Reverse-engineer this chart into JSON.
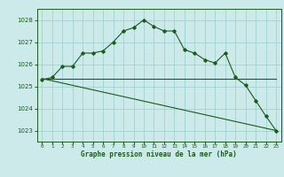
{
  "line1_x": [
    0,
    1,
    2,
    3,
    4,
    5,
    6,
    7,
    8,
    9,
    10,
    11,
    12,
    13,
    14,
    15,
    16,
    17,
    18,
    19,
    20,
    21,
    22,
    23
  ],
  "line1_y": [
    1025.3,
    1025.4,
    1025.9,
    1025.9,
    1026.5,
    1026.5,
    1026.6,
    1027.0,
    1027.5,
    1027.65,
    1028.0,
    1027.7,
    1027.5,
    1027.5,
    1026.65,
    1026.5,
    1026.2,
    1026.05,
    1026.5,
    1025.4,
    1025.05,
    1024.35,
    1023.65,
    1023.0
  ],
  "line2_x": [
    0,
    19,
    23
  ],
  "line2_y": [
    1025.35,
    1025.35,
    1025.35
  ],
  "line3_x": [
    0,
    23
  ],
  "line3_y": [
    1025.35,
    1023.0
  ],
  "color": "#1a5c1a",
  "bg_color": "#cceaea",
  "grid_color": "#99cccc",
  "xlabel": "Graphe pression niveau de la mer (hPa)",
  "xticks": [
    0,
    1,
    2,
    3,
    4,
    5,
    6,
    7,
    8,
    9,
    10,
    11,
    12,
    13,
    14,
    15,
    16,
    17,
    18,
    19,
    20,
    21,
    22,
    23
  ],
  "yticks": [
    1023,
    1024,
    1025,
    1026,
    1027,
    1028
  ],
  "ylim": [
    1022.5,
    1028.5
  ],
  "xlim": [
    -0.5,
    23.5
  ]
}
